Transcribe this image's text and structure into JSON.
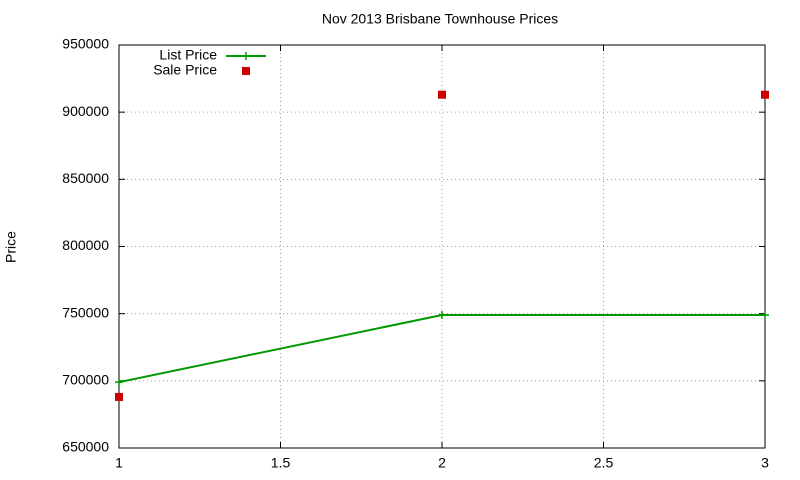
{
  "chart_data": {
    "type": "line",
    "title": "Nov 2013 Brisbane Townhouse Prices",
    "y_label": "Price",
    "x": [
      1,
      2,
      3
    ],
    "series": [
      {
        "name": "List Price",
        "color": "#009900",
        "style": "linespoints",
        "values": [
          699000,
          749000,
          749000
        ]
      },
      {
        "name": "Sale Price",
        "color": "#cc0000",
        "style": "points",
        "values": [
          688000,
          913000,
          913000
        ]
      }
    ],
    "xlim": [
      1,
      3
    ],
    "xticks": [
      1,
      1.5,
      2,
      2.5,
      3
    ],
    "ylim": [
      650000,
      950000
    ],
    "yticks": [
      650000,
      700000,
      750000,
      800000,
      850000,
      900000,
      950000
    ],
    "grid": true,
    "legend": "top-left"
  }
}
